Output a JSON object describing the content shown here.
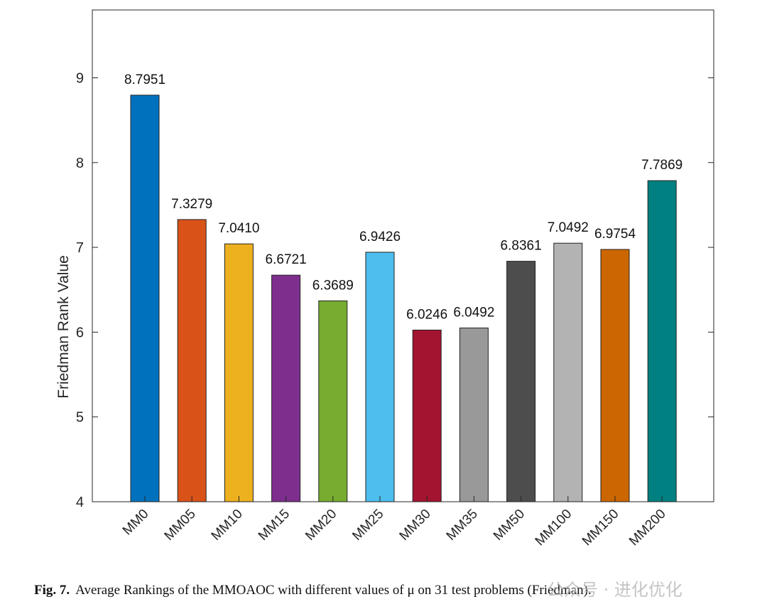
{
  "chart_data": {
    "type": "bar",
    "categories": [
      "MM0",
      "MM05",
      "MM10",
      "MM15",
      "MM20",
      "MM25",
      "MM30",
      "MM35",
      "MM50",
      "MM100",
      "MM150",
      "MM200"
    ],
    "values": [
      8.7951,
      7.3279,
      7.041,
      6.6721,
      6.3689,
      6.9426,
      6.0246,
      6.0492,
      6.8361,
      7.0492,
      6.9754,
      7.7869
    ],
    "value_labels": [
      "8.7951",
      "7.3279",
      "7.0410",
      "6.6721",
      "6.3689",
      "6.9426",
      "6.0246",
      "6.0492",
      "6.8361",
      "7.0492",
      "6.9754",
      "7.7869"
    ],
    "colors": [
      "#0072BD",
      "#D95319",
      "#EDB120",
      "#7E2F8E",
      "#77AC30",
      "#4DBEEE",
      "#A2142F",
      "#999999",
      "#4D4D4D",
      "#B3B3B3",
      "#CC6600",
      "#008080"
    ],
    "title": "",
    "xlabel": "",
    "ylabel": "Friedman Rank Value",
    "ylim": [
      4,
      9.8
    ],
    "yticks": [
      4,
      5,
      6,
      7,
      8,
      9
    ],
    "grid": false
  },
  "caption": {
    "label": "Fig. 7.",
    "text": "Average Rankings of the MMOAOC with different values of μ on 31 test problems (Friedman)."
  },
  "watermark": "公众号 · 进化优化"
}
